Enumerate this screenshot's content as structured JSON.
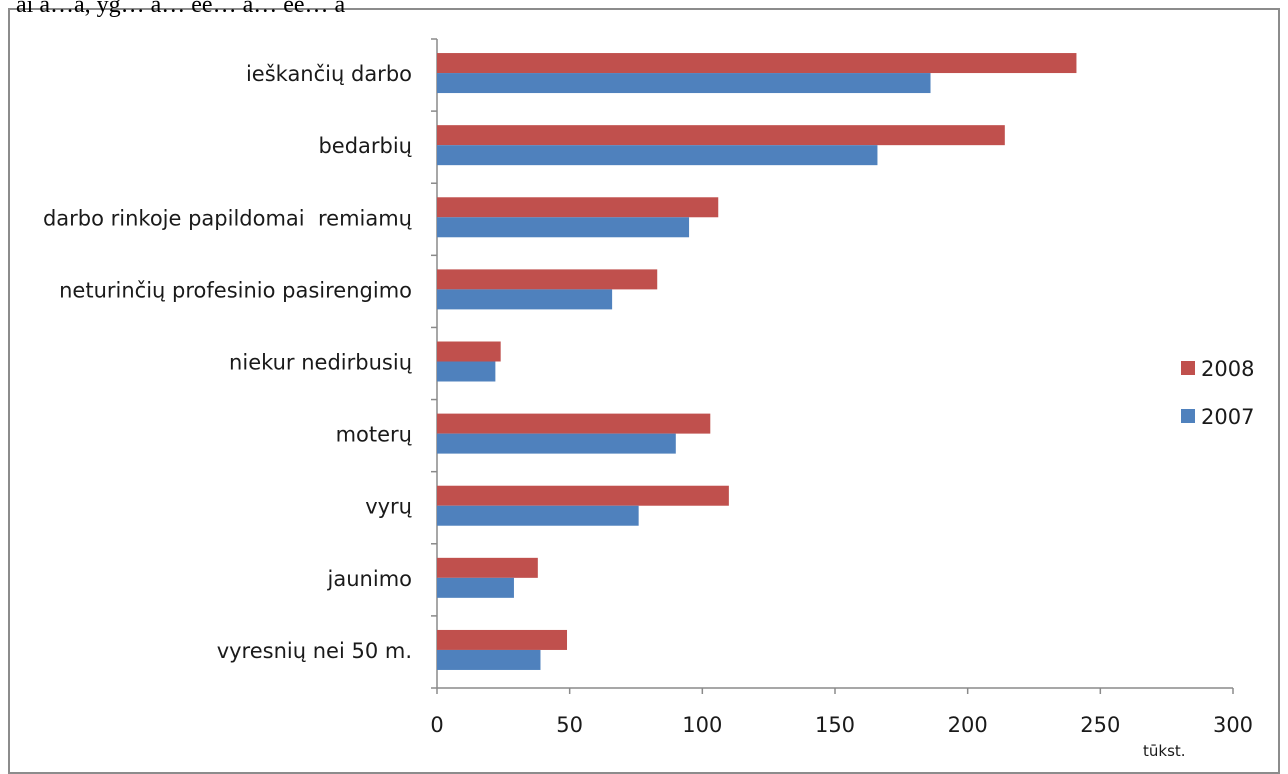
{
  "header_fragment": "ai a…a, yg… a…  ee… a…  ee… a",
  "chart_data": {
    "type": "bar",
    "orientation": "horizontal",
    "title": "",
    "xlabel": "tūkst.",
    "ylabel": "",
    "xlim": [
      0,
      300
    ],
    "xticks": [
      0,
      50,
      100,
      150,
      200,
      250,
      300
    ],
    "tick_labels": [
      "0",
      "50",
      "100",
      "150",
      "200",
      "250",
      "300"
    ],
    "grid": false,
    "legend_position": "right",
    "categories": [
      "ieškančių darbo",
      "bedarbių",
      "darbo rinkoje papildomai  remiamų",
      "neturinčių profesinio pasirengimo",
      "niekur nedirbusių",
      "moterų",
      "vyrų",
      "jaunimo",
      "vyresnių nei 50 m."
    ],
    "series": [
      {
        "name": "2008",
        "color": "#c0504d",
        "values": [
          241,
          214,
          106,
          83,
          24,
          103,
          110,
          38,
          49
        ]
      },
      {
        "name": "2007",
        "color": "#4f81bd",
        "values": [
          186,
          166,
          95,
          66,
          22,
          90,
          76,
          29,
          39
        ]
      }
    ]
  }
}
